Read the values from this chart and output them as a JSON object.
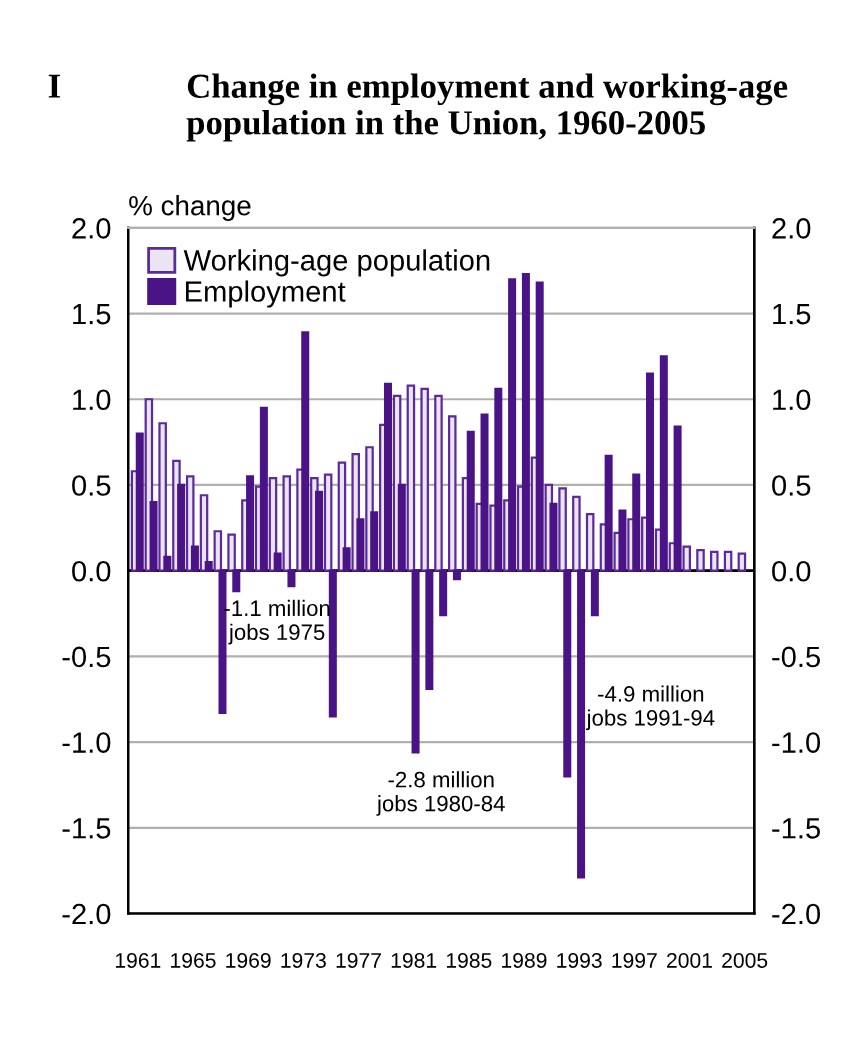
{
  "chart_data": {
    "type": "bar",
    "title": "Change in employment and working-age population in the Union, 1960-2005",
    "ylabel": "% change",
    "categories": [
      "1961",
      null,
      null,
      null,
      "1965",
      null,
      null,
      null,
      "1969",
      null,
      null,
      null,
      "1973",
      null,
      null,
      null,
      "1977",
      null,
      null,
      null,
      "1981",
      null,
      null,
      null,
      "1985",
      null,
      null,
      null,
      "1989",
      null,
      null,
      null,
      "1993",
      null,
      null,
      null,
      "1997",
      null,
      null,
      null,
      "2001",
      null,
      null,
      null,
      "2005"
    ],
    "series": [
      {
        "name": "Working-age population",
        "color": "#ebe4f3",
        "values": [
          0.58,
          1.0,
          0.86,
          0.64,
          0.55,
          0.44,
          0.23,
          0.21,
          0.41,
          0.49,
          0.54,
          0.55,
          0.59,
          0.54,
          0.56,
          0.63,
          0.68,
          0.72,
          0.85,
          1.02,
          1.08,
          1.06,
          1.02,
          0.9,
          0.54,
          0.39,
          0.38,
          0.41,
          0.49,
          0.66,
          0.5,
          0.48,
          0.43,
          0.33,
          0.27,
          0.22,
          0.3,
          0.31,
          0.24,
          0.16,
          0.14,
          0.12,
          0.11,
          0.11,
          0.1
        ]
      },
      {
        "name": "Employment",
        "color": "#4a1486",
        "values": [
          0.8,
          0.4,
          0.08,
          0.5,
          0.14,
          0.05,
          -0.83,
          -0.12,
          0.55,
          0.95,
          0.1,
          -0.09,
          1.39,
          0.46,
          -0.85,
          0.13,
          0.3,
          0.34,
          1.09,
          0.5,
          -1.06,
          -0.69,
          -0.26,
          -0.05,
          0.81,
          0.91,
          1.06,
          1.7,
          1.73,
          1.68,
          0.39,
          -1.2,
          -1.79,
          -0.26,
          0.67,
          0.35,
          0.56,
          1.15,
          1.25,
          0.84,
          null,
          null,
          null,
          null,
          null
        ]
      }
    ],
    "ylim": [
      -2.0,
      2.0
    ],
    "yticks": [
      {
        "value": -2.0,
        "label": "-2.0"
      },
      {
        "value": -1.5,
        "label": "-1.5"
      },
      {
        "value": -1.0,
        "label": "-1.0"
      },
      {
        "value": -0.5,
        "label": "-0.5"
      },
      {
        "value": 0.0,
        "label": "0.0"
      },
      {
        "value": 0.5,
        "label": "0.5"
      },
      {
        "value": 1.0,
        "label": "1.0"
      },
      {
        "value": 1.5,
        "label": "1.5"
      },
      {
        "value": 2.0,
        "label": "2.0"
      }
    ],
    "y2lim": [
      -2.0,
      2.0
    ],
    "y2ticks": [
      {
        "value": -2.0,
        "label": "-2.0"
      },
      {
        "value": -1.5,
        "label": "-1.5"
      },
      {
        "value": -1.0,
        "label": "-1.0"
      },
      {
        "value": -0.5,
        "label": "-0.5"
      },
      {
        "value": 0.0,
        "label": "0.0"
      },
      {
        "value": 0.5,
        "label": "0.5"
      },
      {
        "value": 1.0,
        "label": "1.0"
      },
      {
        "value": 1.5,
        "label": "1.5"
      },
      {
        "value": 2.0,
        "label": "2.0"
      }
    ],
    "grid": "y",
    "legend": "top left",
    "annotations": [
      "I",
      "-1.1 million\njobs 1975",
      "-2.8 million\njobs 1980-84",
      "-4.9 million\njobs 1991-94"
    ]
  }
}
